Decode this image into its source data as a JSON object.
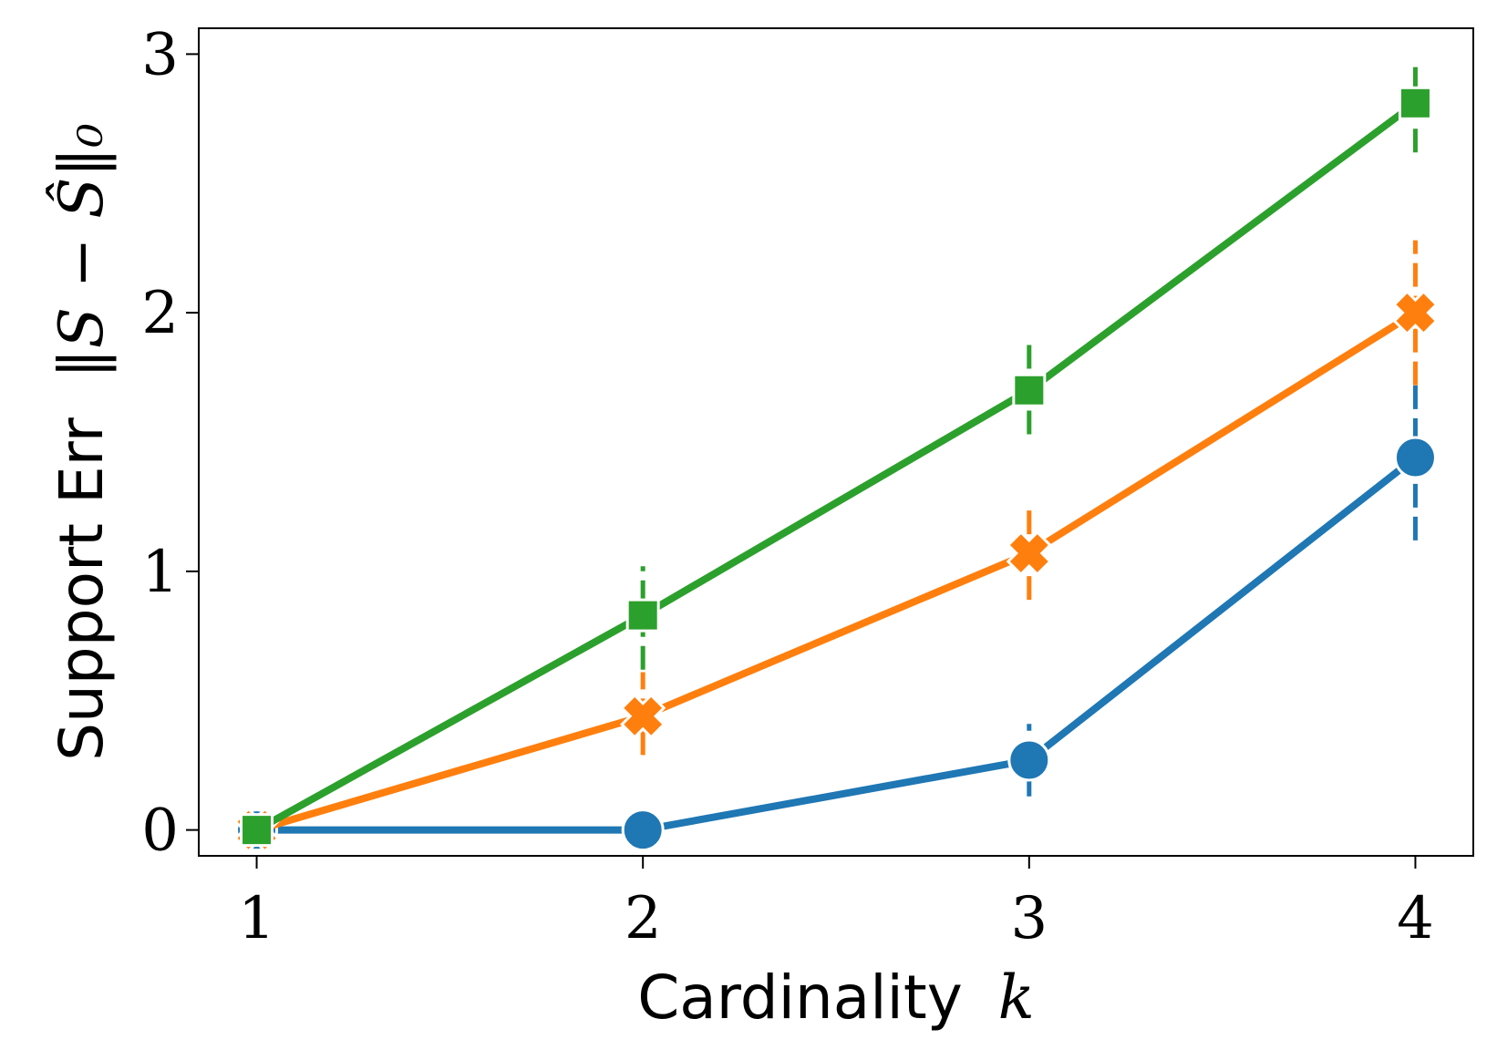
{
  "chart_data": {
    "type": "line",
    "xlabel_text": "Cardinality",
    "xlabel_var": "k",
    "ylabel_text": "Support Err",
    "ylabel_math": "‖S − Ŝ‖₀",
    "x": [
      1,
      2,
      3,
      4
    ],
    "x_ticks": [
      "1",
      "2",
      "3",
      "4"
    ],
    "y_ticks": [
      "0",
      "1",
      "2",
      "3"
    ],
    "xlim": [
      0.85,
      4.15
    ],
    "ylim": [
      -0.1,
      3.1
    ],
    "grid": false,
    "legend": "none",
    "series": [
      {
        "color": "#1f77b4",
        "marker": "circle",
        "values": [
          0,
          0,
          0.27,
          1.44
        ],
        "err_low": [
          0,
          0,
          0.13,
          1.12
        ],
        "err_high": [
          0,
          0,
          0.41,
          1.72
        ]
      },
      {
        "color": "#ff7f0e",
        "marker": "x",
        "values": [
          0,
          0.44,
          1.07,
          2.0
        ],
        "err_low": [
          0,
          0.29,
          0.89,
          1.72
        ],
        "err_high": [
          0,
          0.61,
          1.25,
          2.28
        ]
      },
      {
        "color": "#2ca02c",
        "marker": "square",
        "values": [
          0,
          0.83,
          1.7,
          2.81
        ],
        "err_low": [
          0,
          0.62,
          1.53,
          2.62
        ],
        "err_high": [
          0,
          1.02,
          1.91,
          2.95
        ]
      }
    ]
  }
}
